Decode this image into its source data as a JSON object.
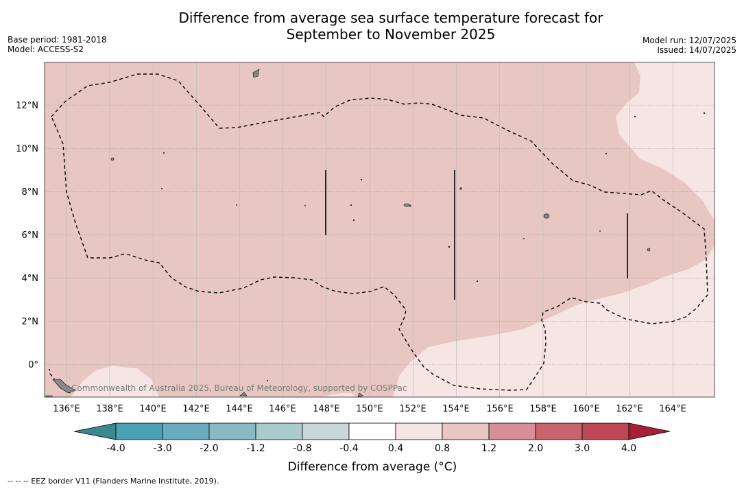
{
  "header": {
    "title_line1": "Difference from average sea surface temperature forecast for",
    "title_line2": "September to November 2025",
    "base_period": "Base period: 1981-2018",
    "model": "Model: ACCESS-S2",
    "model_run": "Model run: 12/07/2025",
    "issued": "Issued: 14/07/2025"
  },
  "map": {
    "lon_labels": [
      "136°E",
      "138°E",
      "140°E",
      "142°E",
      "144°E",
      "146°E",
      "148°E",
      "150°E",
      "152°E",
      "154°E",
      "156°E",
      "158°E",
      "160°E",
      "162°E",
      "164°E"
    ],
    "lat_labels": [
      "12°N",
      "10°N",
      "8°N",
      "6°N",
      "4°N",
      "2°N",
      "0°"
    ],
    "watermark": "Commonwealth of Australia 2025, Bureau of Meteorology, supported by COSPPac",
    "colors": {
      "anomaly_0_8_to_1_2": "#e8c6c1",
      "anomaly_0_4_to_0_8": "#f5e6e3",
      "land": "#888888"
    }
  },
  "colorbar": {
    "tick_labels": [
      "-4.0",
      "-3.0",
      "-2.0",
      "-1.2",
      "-0.8",
      "-0.4",
      "0.4",
      "0.8",
      "1.2",
      "2.0",
      "3.0",
      "4.0"
    ],
    "colors": [
      "#4aa3b5",
      "#69adbd",
      "#8ab8c3",
      "#aacbce",
      "#c8d8da",
      "#ffffff",
      "#f5e6e3",
      "#e8c6c1",
      "#d88e96",
      "#c9646f",
      "#be4657"
    ],
    "under_color": "#3c8890",
    "over_color": "#a81d38",
    "label": "Difference from average (°C)"
  },
  "footer": {
    "eez_note": "--  --  -- EEZ border V11 (Flanders Marine Institute, 2019)."
  }
}
